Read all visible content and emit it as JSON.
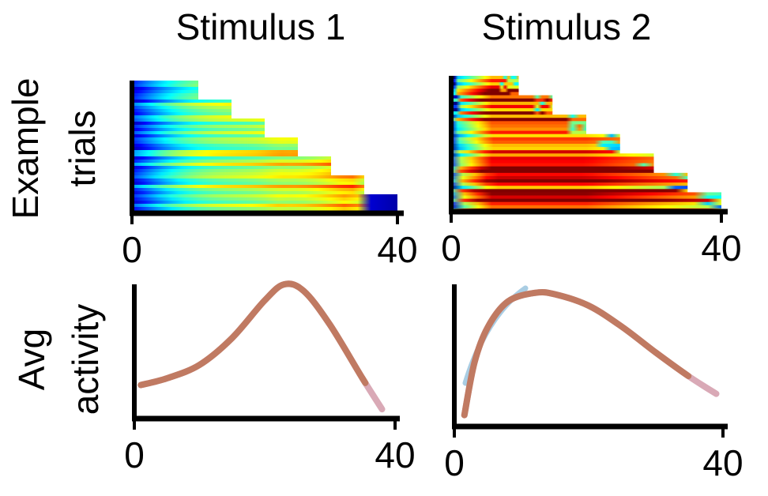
{
  "chart_data": [
    {
      "type": "heatmap",
      "title": "Stimulus 1",
      "ylabel": [
        "Example",
        "trials"
      ],
      "xlim": [
        0,
        40
      ],
      "xticks": [
        0,
        40
      ],
      "trial_durations": [
        10,
        15,
        20,
        25,
        30,
        35,
        40
      ],
      "colormap": "jet"
    },
    {
      "type": "heatmap",
      "title": "Stimulus 2",
      "xlim": [
        0,
        40
      ],
      "xticks": [
        0,
        40
      ],
      "trial_durations": [
        10,
        15,
        20,
        25,
        30,
        35,
        40
      ],
      "colormap": "jet"
    },
    {
      "type": "line",
      "ylabel": [
        "Avg",
        "activity"
      ],
      "xlim": [
        0,
        40
      ],
      "xticks": [
        0,
        40
      ],
      "series": [
        {
          "x": [
            1,
            5,
            10,
            15,
            20,
            23,
            26,
            30,
            35,
            38
          ],
          "y": [
            0.25,
            0.3,
            0.4,
            0.6,
            0.88,
            1.0,
            0.95,
            0.7,
            0.3,
            0.07
          ],
          "color": "#c07a62"
        }
      ]
    },
    {
      "type": "line",
      "xlim": [
        0,
        40
      ],
      "xticks": [
        0,
        40
      ],
      "series": [
        {
          "x": [
            1.5,
            3,
            5,
            8,
            12,
            15,
            20,
            25,
            30,
            35,
            39
          ],
          "y": [
            0.08,
            0.45,
            0.7,
            0.88,
            0.94,
            0.93,
            0.85,
            0.7,
            0.52,
            0.35,
            0.23
          ],
          "color": "#c07a62"
        }
      ]
    }
  ]
}
